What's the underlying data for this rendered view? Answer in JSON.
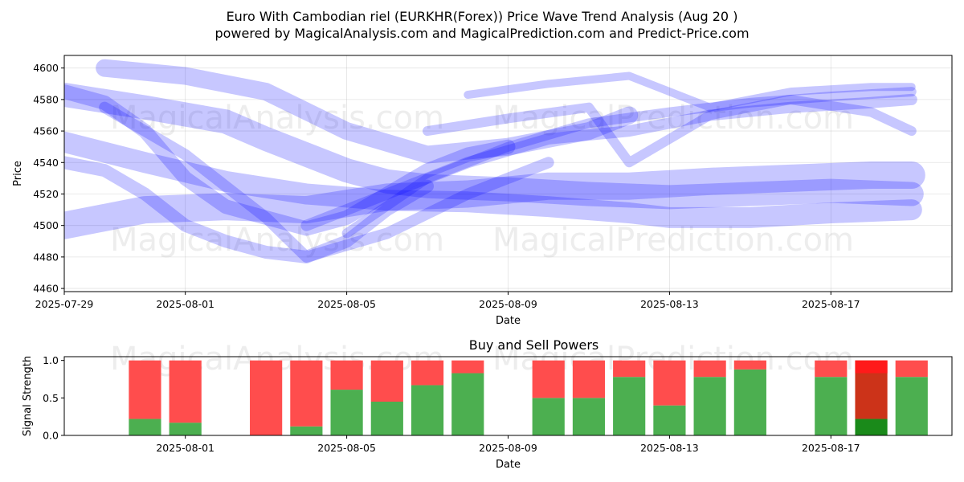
{
  "title_line1": "Euro With Cambodian riel (EURKHR(Forex)) Price Wave Trend Analysis (Aug 20 )",
  "title_line2": "powered by MagicalAnalysis.com and MagicalPrediction.com and Predict-Price.com",
  "watermarks": [
    "MagicalAnalysis.com",
    "MagicalPrediction.com"
  ],
  "chart_data": [
    {
      "type": "line",
      "xlabel": "Date",
      "ylabel": "Price",
      "ylim": [
        4458,
        4608
      ],
      "xlim": [
        "2025-07-29",
        "2025-08-20"
      ],
      "x_ticks": [
        "2025-07-29",
        "2025-08-01",
        "2025-08-05",
        "2025-08-09",
        "2025-08-13",
        "2025-08-17"
      ],
      "y_ticks": [
        4460,
        4480,
        4500,
        4520,
        4540,
        4560,
        4580,
        4600
      ],
      "grid": true,
      "series_color": "#0000ff",
      "series": [
        {
          "x": [
            "2025-07-29",
            "2025-07-31",
            "2025-08-02",
            "2025-08-03",
            "2025-08-04",
            "2025-08-05",
            "2025-08-06",
            "2025-08-07",
            "2025-08-09",
            "2025-08-11",
            "2025-08-13",
            "2025-08-15",
            "2025-08-17",
            "2025-08-19"
          ],
          "values": [
            4583,
            4575,
            4566,
            4555,
            4545,
            4535,
            4528,
            4525,
            4523,
            4520,
            4518,
            4520,
            4522,
            4520
          ]
        },
        {
          "x": [
            "2025-07-29",
            "2025-07-31",
            "2025-08-02",
            "2025-08-04",
            "2025-08-06",
            "2025-08-08",
            "2025-08-10",
            "2025-08-12",
            "2025-08-14",
            "2025-08-16",
            "2025-08-18",
            "2025-08-19"
          ],
          "values": [
            4500,
            4510,
            4512,
            4510,
            4518,
            4520,
            4525,
            4525,
            4528,
            4530,
            4532,
            4532
          ]
        },
        {
          "x": [
            "2025-07-29",
            "2025-07-31",
            "2025-08-02",
            "2025-08-04",
            "2025-08-06",
            "2025-08-08",
            "2025-08-10",
            "2025-08-12",
            "2025-08-13",
            "2025-08-15",
            "2025-08-17",
            "2025-08-19"
          ],
          "values": [
            4553,
            4540,
            4528,
            4520,
            4516,
            4515,
            4512,
            4508,
            4505,
            4505,
            4508,
            4510
          ]
        },
        {
          "x": [
            "2025-07-29",
            "2025-07-30",
            "2025-07-31",
            "2025-08-01",
            "2025-08-02",
            "2025-08-03",
            "2025-08-04",
            "2025-08-05",
            "2025-08-06",
            "2025-08-07",
            "2025-08-08",
            "2025-08-09"
          ],
          "values": [
            4585,
            4578,
            4560,
            4530,
            4512,
            4505,
            4498,
            4505,
            4520,
            4535,
            4545,
            4550
          ]
        },
        {
          "x": [
            "2025-07-29",
            "2025-07-30",
            "2025-07-31",
            "2025-08-01",
            "2025-08-02",
            "2025-08-03",
            "2025-08-04",
            "2025-08-05",
            "2025-08-06",
            "2025-08-07"
          ],
          "values": [
            4540,
            4535,
            4520,
            4500,
            4490,
            4483,
            4480,
            4490,
            4510,
            4525
          ]
        },
        {
          "x": [
            "2025-08-04",
            "2025-08-06",
            "2025-08-08",
            "2025-08-10",
            "2025-08-12",
            "2025-08-14",
            "2025-08-16",
            "2025-08-18",
            "2025-08-19"
          ],
          "values": [
            4500,
            4520,
            4540,
            4555,
            4560,
            4570,
            4575,
            4578,
            4580
          ]
        },
        {
          "x": [
            "2025-08-05",
            "2025-08-07",
            "2025-08-09",
            "2025-08-11",
            "2025-08-13",
            "2025-08-15",
            "2025-08-17",
            "2025-08-19"
          ],
          "values": [
            4495,
            4530,
            4550,
            4565,
            4572,
            4578,
            4582,
            4585
          ]
        },
        {
          "x": [
            "2025-07-30",
            "2025-08-01",
            "2025-08-03",
            "2025-08-04",
            "2025-08-06",
            "2025-08-08",
            "2025-08-10"
          ],
          "values": [
            4575,
            4545,
            4505,
            4480,
            4495,
            4520,
            4540
          ]
        },
        {
          "x": [
            "2025-08-07",
            "2025-08-09",
            "2025-08-11",
            "2025-08-12",
            "2025-08-14",
            "2025-08-16",
            "2025-08-18",
            "2025-08-19"
          ],
          "values": [
            4560,
            4568,
            4575,
            4540,
            4570,
            4580,
            4572,
            4560
          ]
        },
        {
          "x": [
            "2025-07-30",
            "2025-08-01",
            "2025-08-03",
            "2025-08-05",
            "2025-08-07",
            "2025-08-09",
            "2025-08-11",
            "2025-08-12"
          ],
          "values": [
            4600,
            4595,
            4585,
            4560,
            4545,
            4550,
            4560,
            4570
          ]
        },
        {
          "x": [
            "2025-08-08",
            "2025-08-10",
            "2025-08-12",
            "2025-08-14",
            "2025-08-16",
            "2025-08-18",
            "2025-08-19"
          ],
          "values": [
            4583,
            4590,
            4595,
            4575,
            4585,
            4588,
            4588
          ]
        }
      ]
    },
    {
      "type": "bar",
      "title": "Buy and Sell Powers",
      "xlabel": "Date",
      "ylabel": "Signal Strength",
      "ylim": [
        0,
        1.05
      ],
      "xlim": [
        "2025-07-29",
        "2025-08-20"
      ],
      "x_ticks": [
        "2025-08-01",
        "2025-08-05",
        "2025-08-09",
        "2025-08-13",
        "2025-08-17"
      ],
      "y_ticks": [
        0.0,
        0.5,
        1.0
      ],
      "colors": {
        "buy": "#4caf50",
        "sell": "#ff4d4d",
        "buy_strong": "#1a8a1a",
        "sell_strong": "#ff1a1a",
        "mixed": "#cc3319"
      },
      "categories": [
        "2025-07-31",
        "2025-08-01",
        "2025-08-03",
        "2025-08-04",
        "2025-08-05",
        "2025-08-06",
        "2025-08-07",
        "2025-08-08",
        "2025-08-10",
        "2025-08-11",
        "2025-08-12",
        "2025-08-13",
        "2025-08-14",
        "2025-08-15",
        "2025-08-17",
        "2025-08-18",
        "2025-08-19"
      ],
      "series": [
        {
          "name": "Buy",
          "values": [
            0.22,
            0.17,
            0.0,
            0.12,
            0.61,
            0.45,
            0.67,
            0.83,
            0.5,
            0.5,
            0.78,
            0.4,
            0.78,
            0.88,
            0.78,
            0.22,
            0.78
          ]
        },
        {
          "name": "Sell",
          "values": [
            0.78,
            0.83,
            1.0,
            0.88,
            0.39,
            0.55,
            0.33,
            0.17,
            0.5,
            0.5,
            0.22,
            0.6,
            0.22,
            0.12,
            0.22,
            0.78,
            0.22
          ]
        }
      ]
    }
  ]
}
